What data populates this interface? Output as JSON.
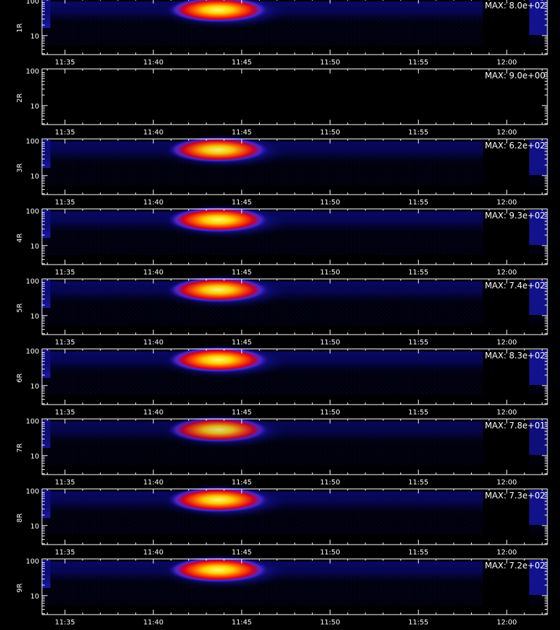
{
  "chart_data": {
    "type": "heatmap",
    "x_ticks": [
      "11:35",
      "11:40",
      "11:45",
      "11:50",
      "11:55",
      "12:00"
    ],
    "y_ticks": [
      "10",
      "100"
    ],
    "colors": {
      "background": "#000000",
      "axis": "#ffffff"
    },
    "panels": [
      {
        "label": "1R",
        "max_label": "MAX: 8.0e+02",
        "intensity": 1.0
      },
      {
        "label": "2R",
        "max_label": "MAX: 9.0e+00",
        "intensity": 0.0
      },
      {
        "label": "3R",
        "max_label": "MAX: 6.2e+02",
        "intensity": 0.95
      },
      {
        "label": "4R",
        "max_label": "MAX: 9.3e+02",
        "intensity": 1.0
      },
      {
        "label": "5R",
        "max_label": "MAX: 7.4e+02",
        "intensity": 0.97
      },
      {
        "label": "6R",
        "max_label": "MAX: 8.3e+02",
        "intensity": 1.0
      },
      {
        "label": "7R",
        "max_label": "MAX: 7.8e+01",
        "intensity": 0.85
      },
      {
        "label": "8R",
        "max_label": "MAX: 7.3e+02",
        "intensity": 0.98
      },
      {
        "label": "9R",
        "max_label": "MAX: 7.2e+02",
        "intensity": 1.0
      }
    ]
  }
}
